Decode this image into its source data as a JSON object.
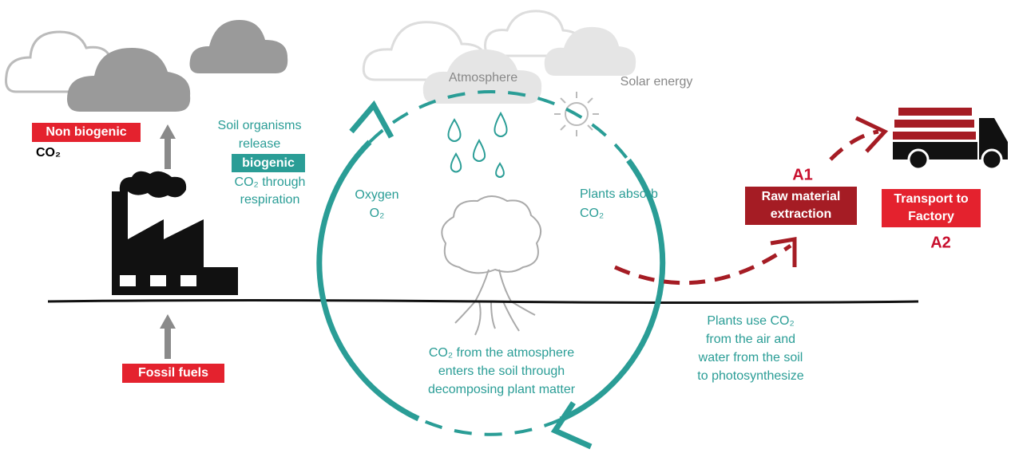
{
  "fossil": {
    "emission_label": "Non biogenic",
    "emission_gas": "CO₂",
    "source_label": "Fossil fuels"
  },
  "soil_release": {
    "lines": [
      "Soil organisms",
      "release",
      "biogenic",
      "CO₂ through",
      "respiration"
    ]
  },
  "atmosphere": "Atmosphere",
  "solar": "Solar energy",
  "oxygen": {
    "lines": [
      "Oxygen",
      "O₂"
    ]
  },
  "plants_absorb": {
    "lines": [
      "Plants absorb",
      "CO₂"
    ]
  },
  "photosynthesis": {
    "lines": [
      "Plants use CO₂",
      "from the air and",
      "water from the soil",
      "to photosynthesize"
    ]
  },
  "decomposition": {
    "lines": [
      "CO₂ from the atmosphere",
      "enters the soil through",
      "decomposing plant matter"
    ]
  },
  "stage_a1": {
    "code": "A1",
    "lines": [
      "Raw material",
      "extraction"
    ]
  },
  "stage_a2": {
    "code": "A2",
    "lines": [
      "Transport to",
      "Factory"
    ]
  }
}
